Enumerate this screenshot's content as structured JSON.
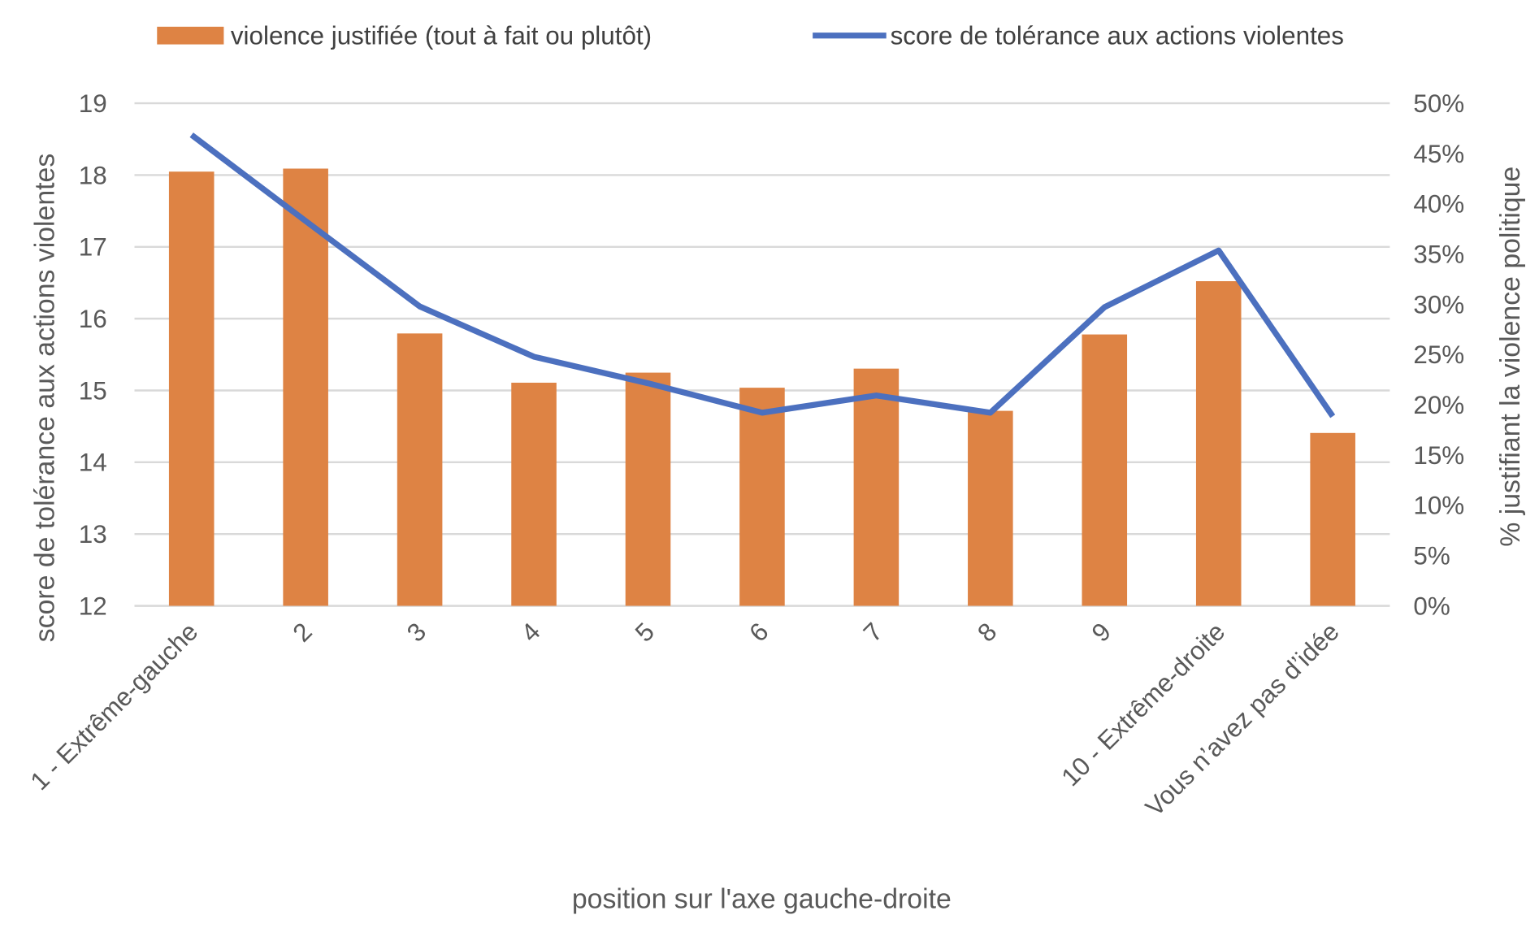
{
  "chart_data": {
    "type": "bar+line",
    "categories": [
      "1 - Extrême-gauche",
      "2",
      "3",
      "4",
      "5",
      "6",
      "7",
      "8",
      "9",
      "10 - Extrême-droite",
      "Vous n’avez pas d’idée"
    ],
    "series": [
      {
        "name": "violence justifiée (tout à fait ou plutôt)",
        "type": "bar",
        "axis": "right",
        "color": "#DE8344",
        "values": [
          43.2,
          43.5,
          27.1,
          22.2,
          23.2,
          21.7,
          23.6,
          19.4,
          27.0,
          32.3,
          17.2
        ]
      },
      {
        "name": "score de tolérance aux actions violentes",
        "type": "line",
        "axis": "left",
        "color": "#4C70BF",
        "values": [
          18.56,
          17.36,
          16.17,
          15.47,
          15.1,
          14.69,
          14.93,
          14.69,
          16.16,
          16.95,
          14.64
        ]
      }
    ],
    "xlabel": "position sur l'axe gauche-droite",
    "ylabel": "score de tolérance aux actions violentes",
    "y2label": "% justifiant la violence politique",
    "ylim": [
      12,
      19
    ],
    "y2lim": [
      0,
      50
    ],
    "yticks": [
      "12",
      "13",
      "14",
      "15",
      "16",
      "17",
      "18",
      "19"
    ],
    "y2ticks": [
      "0%",
      "5%",
      "10%",
      "15%",
      "20%",
      "25%",
      "30%",
      "35%",
      "40%",
      "45%",
      "50%"
    ],
    "grid": true,
    "legend": "top"
  }
}
